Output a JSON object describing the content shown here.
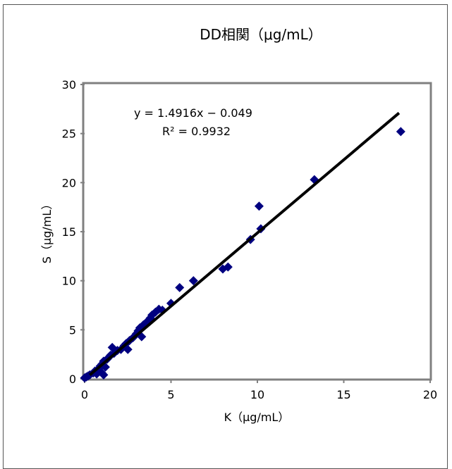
{
  "chart_data": {
    "type": "scatter",
    "title": "DD相関（μg/mL）",
    "xlabel": "K（μg/mL）",
    "ylabel": "S（μg/mL）",
    "xlim": [
      0,
      20
    ],
    "ylim": [
      0,
      30
    ],
    "x_ticks": [
      "0",
      "5",
      "10",
      "15",
      "20"
    ],
    "y_ticks": [
      "0",
      "5",
      "10",
      "15",
      "20",
      "25",
      "30"
    ],
    "grid": false,
    "marker_color": "#000080",
    "trendline_color": "#000000",
    "trendline": {
      "slope": 1.4916,
      "intercept": -0.049,
      "x_range": [
        0.3,
        18.2
      ],
      "equation_text": "y = 1.4916x − 0.049",
      "r2_text": "R² = 0.9932"
    },
    "series": [
      {
        "points": [
          [
            0.0,
            0.1
          ],
          [
            0.1,
            0.2
          ],
          [
            0.2,
            0.3
          ],
          [
            0.3,
            0.4
          ],
          [
            0.5,
            0.6
          ],
          [
            0.6,
            0.8
          ],
          [
            0.7,
            0.5
          ],
          [
            0.8,
            1.0
          ],
          [
            0.9,
            1.3
          ],
          [
            1.0,
            1.5
          ],
          [
            1.0,
            0.6
          ],
          [
            1.1,
            0.4
          ],
          [
            1.1,
            1.8
          ],
          [
            1.2,
            1.2
          ],
          [
            1.3,
            2.0
          ],
          [
            1.4,
            2.2
          ],
          [
            1.5,
            2.4
          ],
          [
            1.6,
            3.2
          ],
          [
            1.7,
            2.6
          ],
          [
            1.9,
            2.9
          ],
          [
            2.1,
            3.0
          ],
          [
            2.3,
            3.4
          ],
          [
            2.4,
            3.6
          ],
          [
            2.5,
            3.0
          ],
          [
            2.6,
            3.9
          ],
          [
            2.8,
            4.2
          ],
          [
            3.0,
            4.6
          ],
          [
            3.1,
            4.9
          ],
          [
            3.2,
            5.2
          ],
          [
            3.3,
            4.3
          ],
          [
            3.4,
            5.5
          ],
          [
            3.6,
            5.8
          ],
          [
            3.8,
            6.2
          ],
          [
            3.9,
            6.5
          ],
          [
            4.1,
            6.8
          ],
          [
            4.3,
            7.1
          ],
          [
            4.5,
            7.0
          ],
          [
            5.0,
            7.7
          ],
          [
            5.5,
            9.3
          ],
          [
            6.3,
            10.0
          ],
          [
            8.0,
            11.2
          ],
          [
            8.3,
            11.4
          ],
          [
            9.6,
            14.2
          ],
          [
            10.1,
            17.6
          ],
          [
            10.2,
            15.3
          ],
          [
            13.3,
            20.3
          ],
          [
            18.3,
            25.2
          ]
        ]
      }
    ]
  }
}
